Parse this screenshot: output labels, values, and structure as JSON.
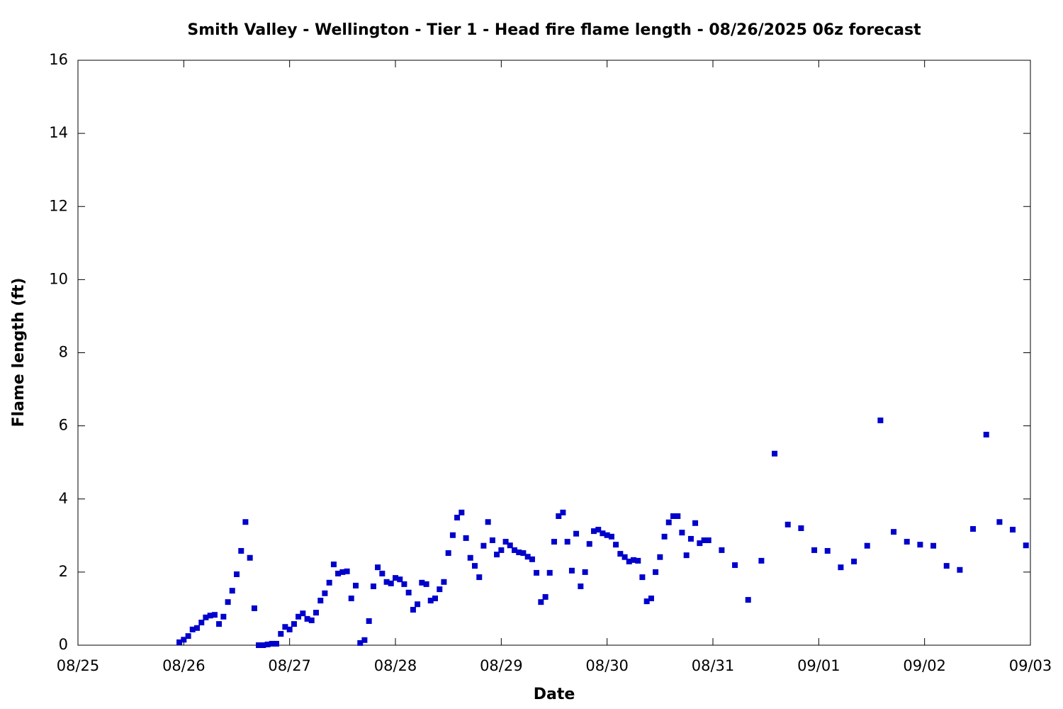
{
  "chart_data": {
    "type": "scatter",
    "title": "Smith Valley - Wellington - Tier 1 - Head fire flame length - 08/26/2025 06z forecast",
    "x_label": "Date",
    "y_label": "Flame length (ft)",
    "color": "#0000cc",
    "xlim": [
      0,
      9
    ],
    "ylim": [
      0,
      16
    ],
    "xticks": [
      {
        "value": 0,
        "label": "08/25"
      },
      {
        "value": 1,
        "label": "08/26"
      },
      {
        "value": 2,
        "label": "08/27"
      },
      {
        "value": 3,
        "label": "08/28"
      },
      {
        "value": 4,
        "label": "08/29"
      },
      {
        "value": 5,
        "label": "08/30"
      },
      {
        "value": 6,
        "label": "08/31"
      },
      {
        "value": 7,
        "label": "09/01"
      },
      {
        "value": 8,
        "label": "09/02"
      },
      {
        "value": 9,
        "label": "09/03"
      }
    ],
    "yticks": [
      0,
      2,
      4,
      6,
      8,
      10,
      12,
      14,
      16
    ],
    "x": [
      0.958,
      1,
      1.042,
      1.083,
      1.125,
      1.167,
      1.208,
      1.25,
      1.292,
      1.333,
      1.375,
      1.417,
      1.458,
      1.5,
      1.542,
      1.583,
      1.625,
      1.667,
      1.708,
      1.75,
      1.792,
      1.833,
      1.875,
      1.917,
      1.958,
      2,
      2.042,
      2.083,
      2.125,
      2.167,
      2.208,
      2.25,
      2.292,
      2.333,
      2.375,
      2.417,
      2.458,
      2.5,
      2.542,
      2.583,
      2.625,
      2.667,
      2.708,
      2.75,
      2.792,
      2.833,
      2.875,
      2.917,
      2.958,
      3,
      3.042,
      3.083,
      3.125,
      3.167,
      3.208,
      3.25,
      3.292,
      3.333,
      3.375,
      3.417,
      3.458,
      3.5,
      3.542,
      3.583,
      3.625,
      3.667,
      3.708,
      3.75,
      3.792,
      3.833,
      3.875,
      3.917,
      3.958,
      4,
      4.042,
      4.083,
      4.125,
      4.167,
      4.208,
      4.25,
      4.292,
      4.333,
      4.375,
      4.417,
      4.458,
      4.5,
      4.542,
      4.583,
      4.625,
      4.667,
      4.708,
      4.75,
      4.792,
      4.833,
      4.875,
      4.917,
      4.958,
      5,
      5.042,
      5.083,
      5.125,
      5.167,
      5.208,
      5.25,
      5.292,
      5.333,
      5.375,
      5.417,
      5.458,
      5.5,
      5.542,
      5.583,
      5.625,
      5.667,
      5.708,
      5.75,
      5.792,
      5.833,
      5.875,
      5.917,
      5.958,
      6.083,
      6.208,
      6.333,
      6.458,
      6.583,
      6.708,
      6.833,
      6.958,
      7.083,
      7.208,
      7.333,
      7.458,
      7.583,
      7.708,
      7.833,
      7.958,
      8.083,
      8.208,
      8.333,
      8.458,
      8.583,
      8.708,
      8.833,
      8.958
    ],
    "values": [
      0.08,
      0.15,
      0.25,
      0.43,
      0.47,
      0.62,
      0.76,
      0.81,
      0.83,
      0.58,
      0.78,
      1.18,
      1.49,
      1.94,
      2.58,
      3.37,
      2.39,
      1.01,
      0,
      0,
      0.02,
      0.04,
      0.04,
      0.31,
      0.5,
      0.43,
      0.58,
      0.78,
      0.87,
      0.72,
      0.68,
      0.89,
      1.22,
      1.42,
      1.71,
      2.21,
      1.96,
      2.0,
      2.02,
      1.28,
      1.63,
      0.06,
      0.14,
      0.66,
      1.61,
      2.13,
      1.96,
      1.73,
      1.69,
      1.84,
      1.8,
      1.67,
      1.44,
      0.97,
      1.12,
      1.71,
      1.67,
      1.22,
      1.28,
      1.53,
      1.73,
      2.52,
      3.01,
      3.49,
      3.63,
      2.93,
      2.39,
      2.17,
      1.86,
      2.72,
      3.37,
      2.87,
      2.48,
      2.6,
      2.83,
      2.73,
      2.6,
      2.54,
      2.52,
      2.42,
      2.35,
      1.98,
      1.18,
      1.32,
      1.98,
      2.83,
      3.53,
      3.63,
      2.83,
      2.04,
      3.05,
      1.61,
      2.0,
      2.77,
      3.12,
      3.16,
      3.06,
      3.01,
      2.97,
      2.75,
      2.5,
      2.41,
      2.29,
      2.33,
      2.31,
      1.86,
      1.2,
      1.28,
      2.0,
      2.41,
      2.97,
      3.36,
      3.53,
      3.53,
      3.08,
      2.46,
      2.91,
      3.34,
      2.79,
      2.87,
      2.87,
      2.6,
      2.19,
      1.24,
      2.31,
      5.24,
      3.3,
      3.2,
      2.6,
      2.58,
      2.13,
      2.29,
      2.72,
      6.15,
      3.1,
      2.83,
      2.75,
      2.72,
      2.17,
      2.06,
      3.18,
      5.76,
      3.37,
      3.16,
      2.73
    ]
  }
}
